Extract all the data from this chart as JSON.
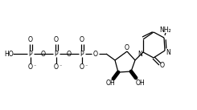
{
  "bg_color": "#ffffff",
  "lw": 0.9,
  "fs": 5.6,
  "figsize": [
    2.45,
    1.37
  ],
  "dpi": 100,
  "xlim": [
    0,
    245
  ],
  "ylim": [
    0,
    137
  ]
}
